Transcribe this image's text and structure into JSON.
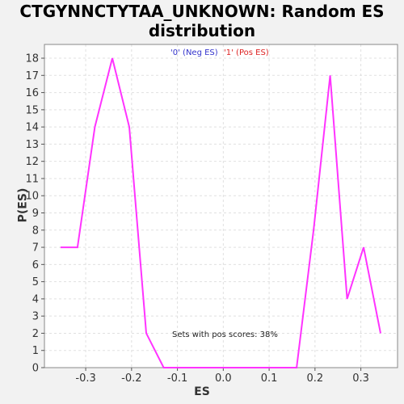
{
  "chart_data": {
    "type": "line",
    "title_line1": "CTGYNNCTYTAA_UNKNOWN: Random ES",
    "title_line2": "distribution",
    "xlabel": "ES",
    "ylabel": "P(ES)",
    "xlim": [
      -0.39,
      0.38
    ],
    "ylim": [
      0,
      18.8
    ],
    "x_ticks": [
      -0.3,
      -0.2,
      -0.1,
      0.0,
      0.1,
      0.2,
      0.3
    ],
    "x_tick_labels": [
      "-0.3",
      "-0.2",
      "-0.1",
      "0.0",
      "0.1",
      "0.2",
      "0.3"
    ],
    "y_ticks": [
      0,
      1,
      2,
      3,
      4,
      5,
      6,
      7,
      8,
      9,
      10,
      11,
      12,
      13,
      14,
      15,
      16,
      17,
      18
    ],
    "legend": [
      {
        "label": "'0' (Neg ES)",
        "color": "#3333cc"
      },
      {
        "label": "'1' (Pos ES)",
        "color": "#dd2222"
      }
    ],
    "annotation": "Sets with pos scores: 38%",
    "grid": true,
    "series": [
      {
        "color": "#ff33ff",
        "x": [
          -0.355,
          -0.318,
          -0.28,
          -0.242,
          -0.205,
          -0.168,
          -0.13,
          0.16,
          0.197,
          0.233,
          0.27,
          0.306,
          0.343
        ],
        "y": [
          7,
          7,
          14,
          18,
          14,
          2,
          0,
          0,
          8,
          17,
          4,
          7,
          2
        ]
      }
    ]
  }
}
